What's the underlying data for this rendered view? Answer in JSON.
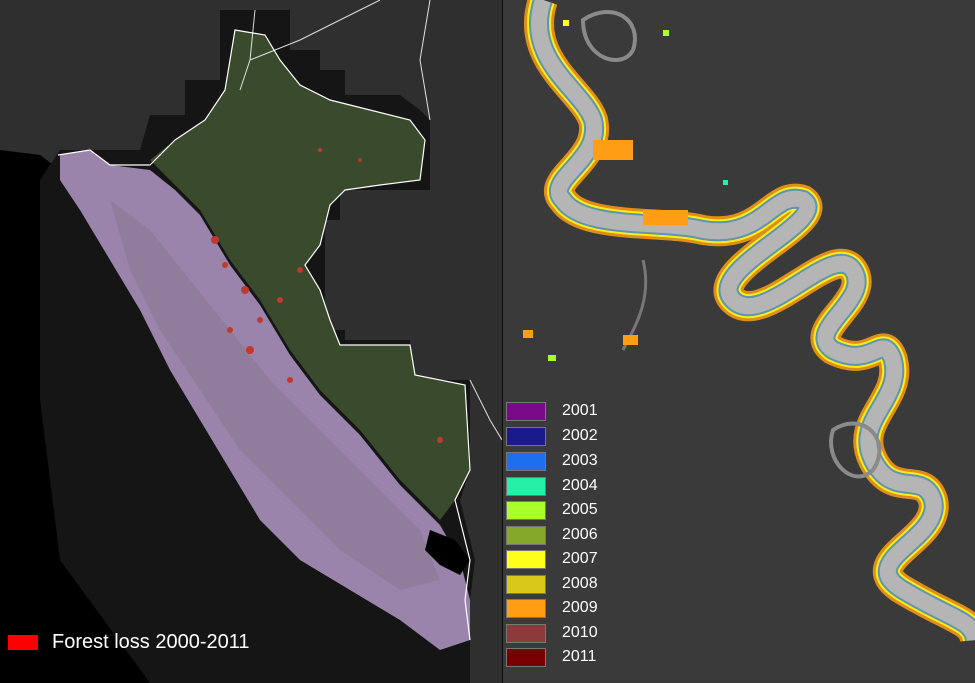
{
  "left_map": {
    "legend": {
      "label": "Forest loss 2000-2011",
      "color": "#ff0000"
    }
  },
  "right_map": {
    "legend": [
      {
        "year": "2001",
        "color": "#7a0a8a"
      },
      {
        "year": "2002",
        "color": "#1a1a8c"
      },
      {
        "year": "2003",
        "color": "#1e6ef0"
      },
      {
        "year": "2004",
        "color": "#24f0a8"
      },
      {
        "year": "2005",
        "color": "#a8ff2a"
      },
      {
        "year": "2006",
        "color": "#86a82a"
      },
      {
        "year": "2007",
        "color": "#ffff1a"
      },
      {
        "year": "2008",
        "color": "#d8c81a"
      },
      {
        "year": "2009",
        "color": "#ff9e14"
      },
      {
        "year": "2010",
        "color": "#8c3a3a"
      },
      {
        "year": "2011",
        "color": "#7a0000"
      }
    ]
  },
  "colors": {
    "background": "#2e2e2e",
    "forest": "#3a4a2c",
    "andes": "#9a84ab",
    "ocean": "#000000",
    "boundary": "#ffffff"
  }
}
